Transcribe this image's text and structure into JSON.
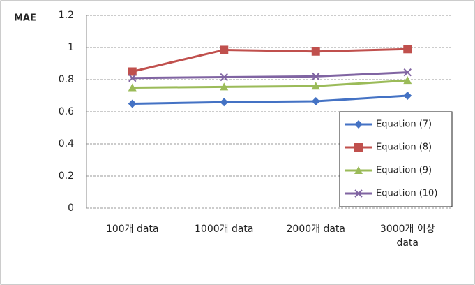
{
  "chart_data": {
    "type": "line",
    "y_label": "MAE",
    "categories": [
      "100개 data",
      "1000개 data",
      "2000개 data",
      "3000개 이상 data"
    ],
    "series": [
      {
        "name": "Equation (7)",
        "color": "#4472c4",
        "marker": "diamond",
        "values": [
          0.65,
          0.66,
          0.665,
          0.7
        ]
      },
      {
        "name": "Equation (8)",
        "color": "#c0504d",
        "marker": "square",
        "values": [
          0.85,
          0.985,
          0.975,
          0.99
        ]
      },
      {
        "name": "Equation (9)",
        "color": "#9bbb59",
        "marker": "triangle",
        "values": [
          0.75,
          0.755,
          0.76,
          0.795
        ]
      },
      {
        "name": "Equation (10)",
        "color": "#8064a2",
        "marker": "x",
        "values": [
          0.81,
          0.815,
          0.82,
          0.845
        ]
      }
    ],
    "ylim": [
      0,
      1.2
    ],
    "yticks": [
      0,
      0.2,
      0.4,
      0.6,
      0.8,
      1,
      1.2
    ],
    "grid": true,
    "legend": "lower right"
  }
}
